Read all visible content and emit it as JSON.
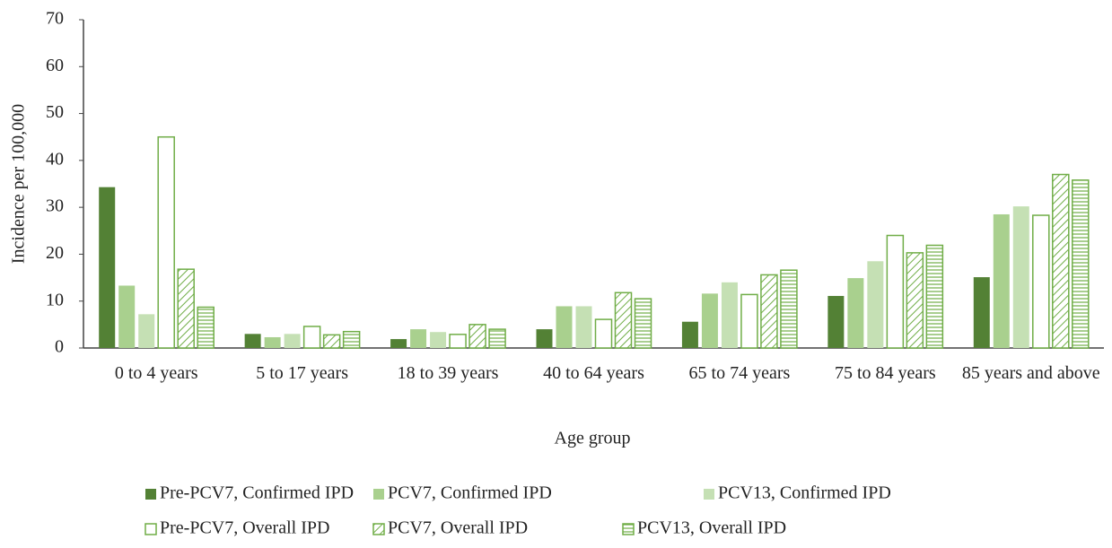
{
  "chart_data": {
    "type": "bar",
    "x_label": "Age group",
    "y_label": "Incidence per 100,000",
    "categories": [
      "0 to 4 years",
      "5 to 17 years",
      "18 to 39 years",
      "40 to 64 years",
      "65 to 74 years",
      "75 to 84 years",
      "85 years and above"
    ],
    "series": [
      {
        "name": "Pre-PCV7, Confirmed IPD",
        "color": "#538135",
        "fill": "solid",
        "values": [
          34.3,
          3.0,
          1.9,
          4.0,
          5.6,
          11.1,
          15.1
        ]
      },
      {
        "name": "PCV7, Confirmed IPD",
        "color": "#a9d08e",
        "fill": "solid",
        "values": [
          13.3,
          2.3,
          4.0,
          8.9,
          11.6,
          14.9,
          28.5
        ]
      },
      {
        "name": "PCV13, Confirmed IPD",
        "color": "#c5e0b4",
        "fill": "solid",
        "values": [
          7.2,
          3.0,
          3.4,
          8.9,
          14.0,
          18.5,
          30.2
        ]
      },
      {
        "name": "Pre-PCV7, Overall IPD",
        "color": "#70ad47",
        "fill": "outline",
        "values": [
          45.0,
          4.6,
          2.9,
          6.1,
          11.4,
          24.0,
          28.3
        ]
      },
      {
        "name": "PCV7, Overall IPD",
        "color": "#70ad47",
        "fill": "diagonal",
        "values": [
          16.8,
          2.8,
          5.0,
          11.8,
          15.6,
          20.3,
          37.0
        ]
      },
      {
        "name": "PCV13, Overall IPD",
        "color": "#70ad47",
        "fill": "horizontal",
        "values": [
          8.7,
          3.5,
          4.0,
          10.5,
          16.6,
          21.9,
          35.8
        ]
      }
    ],
    "ylim": [
      0,
      70
    ],
    "yticks": [
      0,
      10,
      20,
      30,
      40,
      50,
      60,
      70
    ],
    "grid": false,
    "legend": "bottom"
  }
}
